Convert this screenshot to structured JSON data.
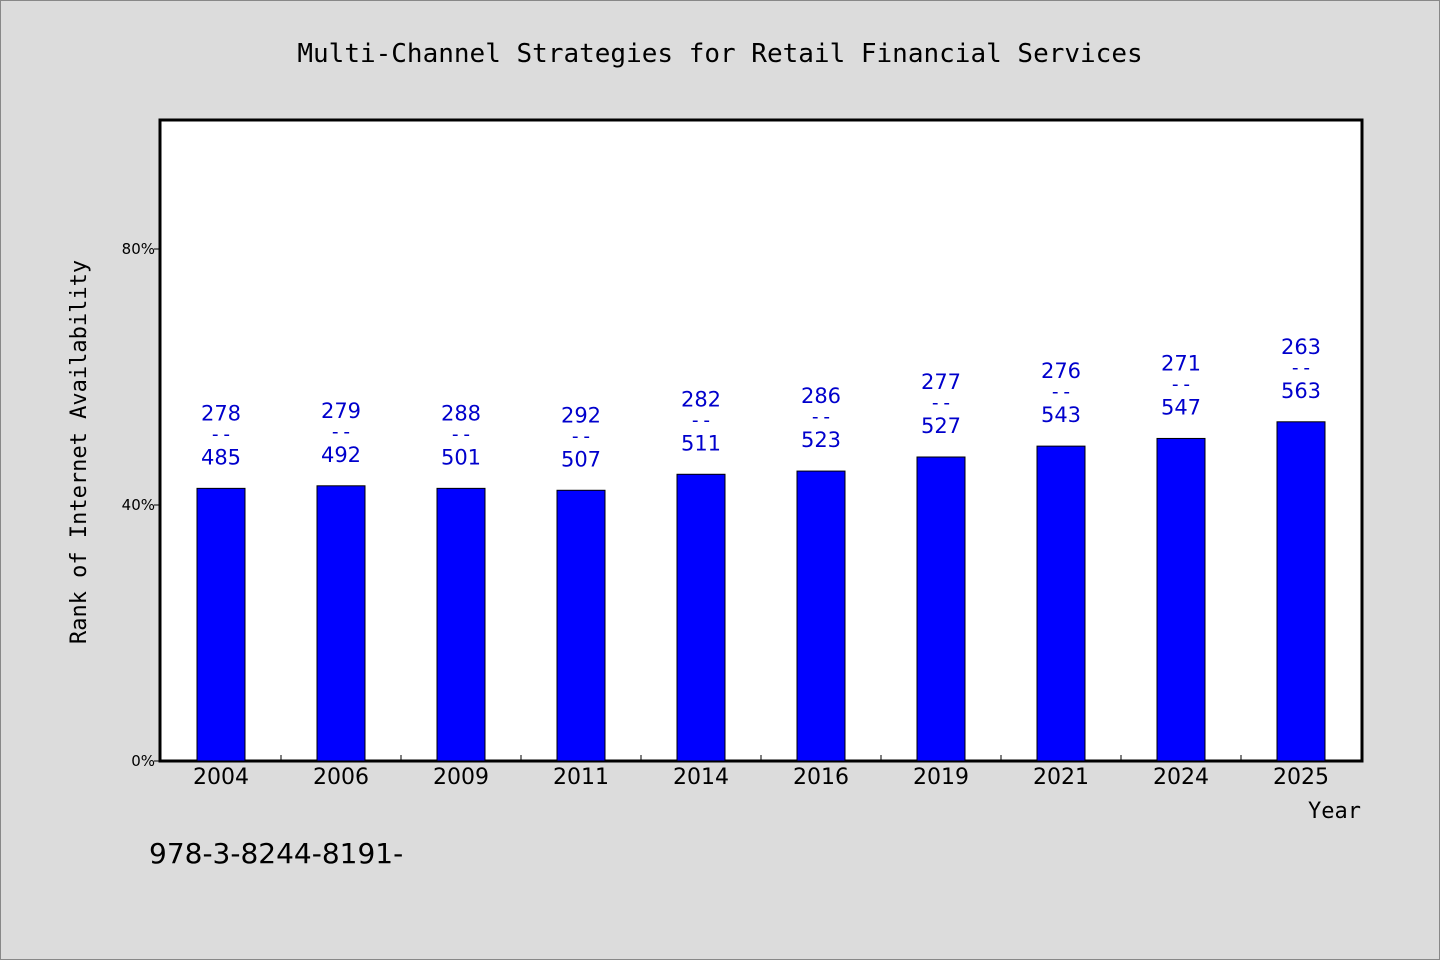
{
  "chart_data": {
    "type": "bar",
    "title": "Multi-Channel Strategies for Retail Financial Services",
    "xlabel": "Year",
    "ylabel": "Rank of Internet Availability",
    "ylim": [
      0,
      100
    ],
    "yticks": [
      0,
      40,
      80
    ],
    "ytick_labels": [
      "0%",
      "40%",
      "80%"
    ],
    "categories": [
      "2004",
      "2006",
      "2009",
      "2011",
      "2014",
      "2016",
      "2019",
      "2021",
      "2024",
      "2025"
    ],
    "values": [
      42.6,
      43.0,
      42.6,
      42.3,
      44.8,
      45.3,
      47.5,
      49.2,
      50.4,
      53.0
    ],
    "bar_label_top": [
      "278",
      "279",
      "288",
      "292",
      "282",
      "286",
      "277",
      "276",
      "271",
      "263"
    ],
    "bar_label_sep": "--",
    "bar_label_bottom": [
      "485",
      "492",
      "501",
      "507",
      "511",
      "523",
      "527",
      "543",
      "547",
      "563"
    ],
    "bar_color": "#0000ff",
    "label_color": "#0000cc",
    "grid": false
  },
  "footer_text": "978-3-8244-8191-",
  "colors": {
    "background": "#dcdcdc",
    "plot_background": "#ffffff",
    "axis": "#000000"
  }
}
